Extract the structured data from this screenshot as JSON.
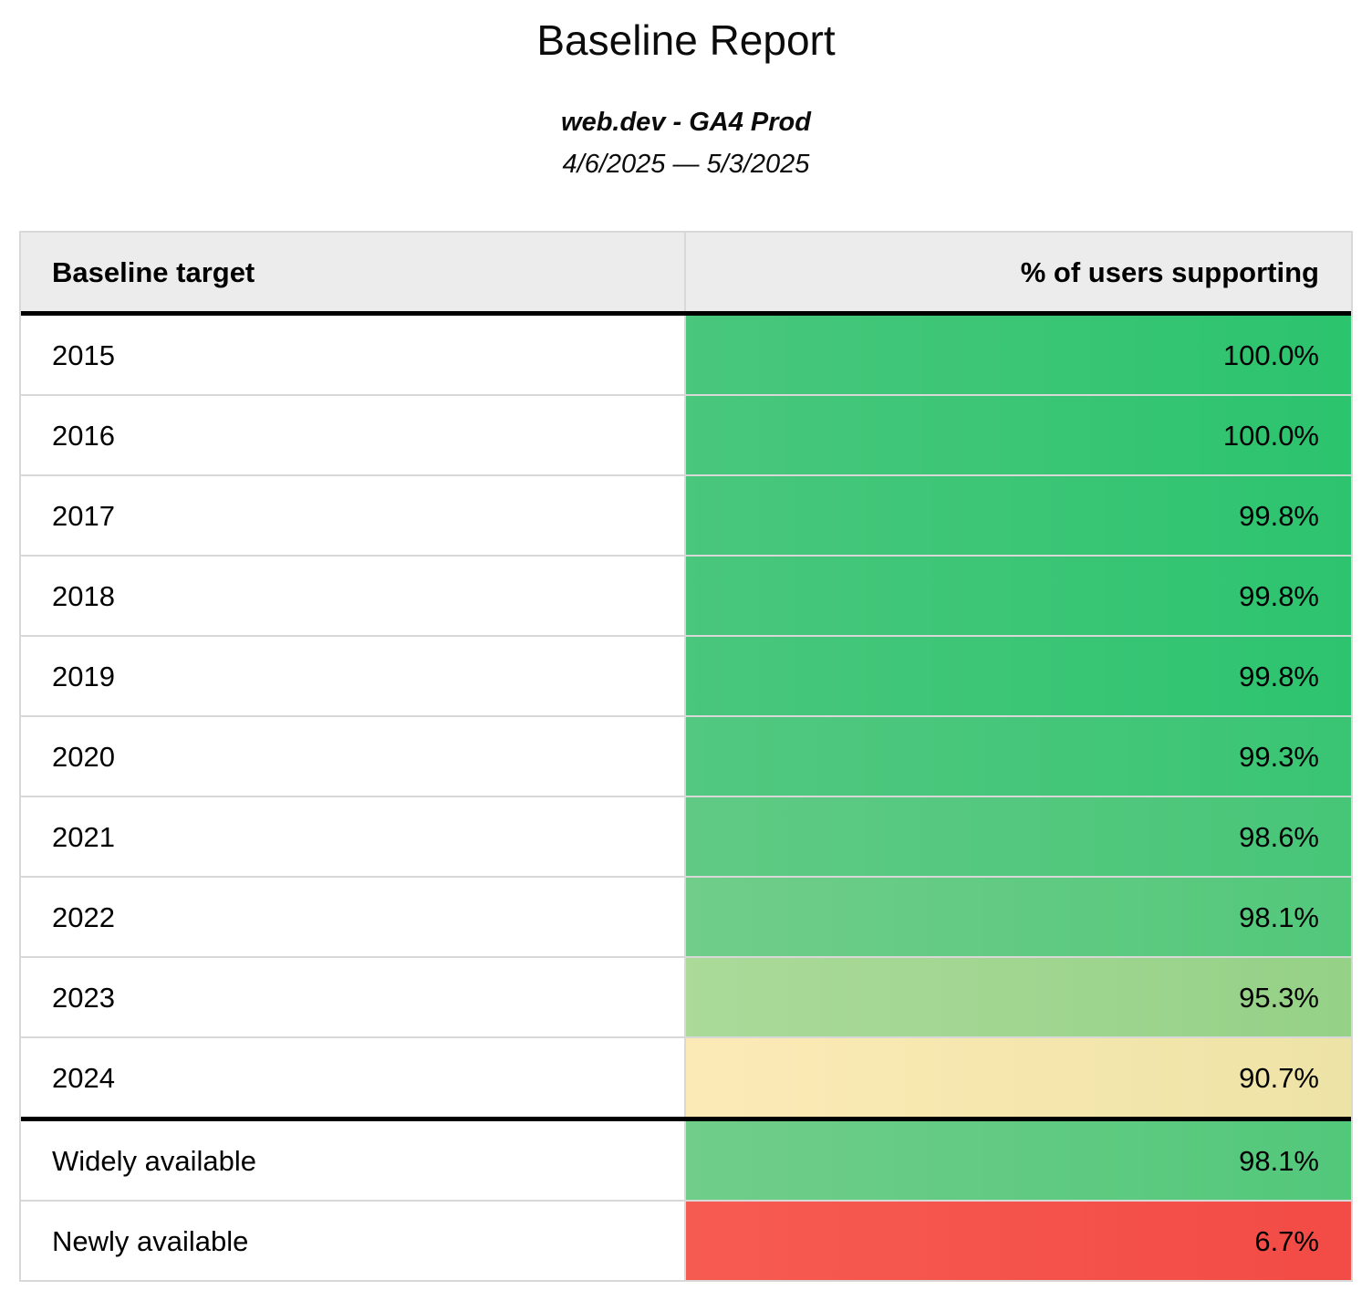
{
  "report": {
    "title": "Baseline Report",
    "subtitle": "web.dev - GA4 Prod",
    "date_range": "4/6/2025 — 5/3/2025"
  },
  "table": {
    "columns": [
      {
        "label": "Baseline target",
        "align": "left"
      },
      {
        "label": "% of users supporting",
        "align": "right"
      }
    ],
    "rows": [
      {
        "label": "2015",
        "value": "100.0%",
        "color_left": "#49c77c",
        "color_right": "#2cc46e"
      },
      {
        "label": "2016",
        "value": "100.0%",
        "color_left": "#49c77c",
        "color_right": "#2cc46e"
      },
      {
        "label": "2017",
        "value": "99.8%",
        "color_left": "#49c77c",
        "color_right": "#2dc46f"
      },
      {
        "label": "2018",
        "value": "99.8%",
        "color_left": "#49c77c",
        "color_right": "#2dc46f"
      },
      {
        "label": "2019",
        "value": "99.8%",
        "color_left": "#49c77c",
        "color_right": "#2dc46f"
      },
      {
        "label": "2020",
        "value": "99.3%",
        "color_left": "#52c880",
        "color_right": "#39c573"
      },
      {
        "label": "2021",
        "value": "98.6%",
        "color_left": "#60ca84",
        "color_right": "#47c678"
      },
      {
        "label": "2022",
        "value": "98.1%",
        "color_left": "#70cd8a",
        "color_right": "#52c87b"
      },
      {
        "label": "2023",
        "value": "95.3%",
        "color_left": "#abda99",
        "color_right": "#95d187"
      },
      {
        "label": "2024",
        "value": "90.7%",
        "color_left": "#fceab6",
        "color_right": "#eee3a6"
      },
      {
        "label": "Widely available",
        "value": "98.1%",
        "color_left": "#70cd8a",
        "color_right": "#52c87b"
      },
      {
        "label": "Newly available",
        "value": "6.7%",
        "color_left": "#f65b51",
        "color_right": "#f34b46"
      }
    ],
    "style": {
      "header_background": "#ececec",
      "grid_border_color": "#d8d8d8",
      "section_border_color": "#000000"
    }
  },
  "chart_data": {
    "type": "table",
    "title": "Baseline Report",
    "subtitle": "web.dev - GA4 Prod",
    "date_range": "4/6/2025 — 5/3/2025",
    "columns": [
      "Baseline target",
      "% of users supporting"
    ],
    "categories": [
      "2015",
      "2016",
      "2017",
      "2018",
      "2019",
      "2020",
      "2021",
      "2022",
      "2023",
      "2024",
      "Widely available",
      "Newly available"
    ],
    "values": [
      100.0,
      100.0,
      99.8,
      99.8,
      99.8,
      99.3,
      98.6,
      98.1,
      95.3,
      90.7,
      98.1,
      6.7
    ]
  }
}
